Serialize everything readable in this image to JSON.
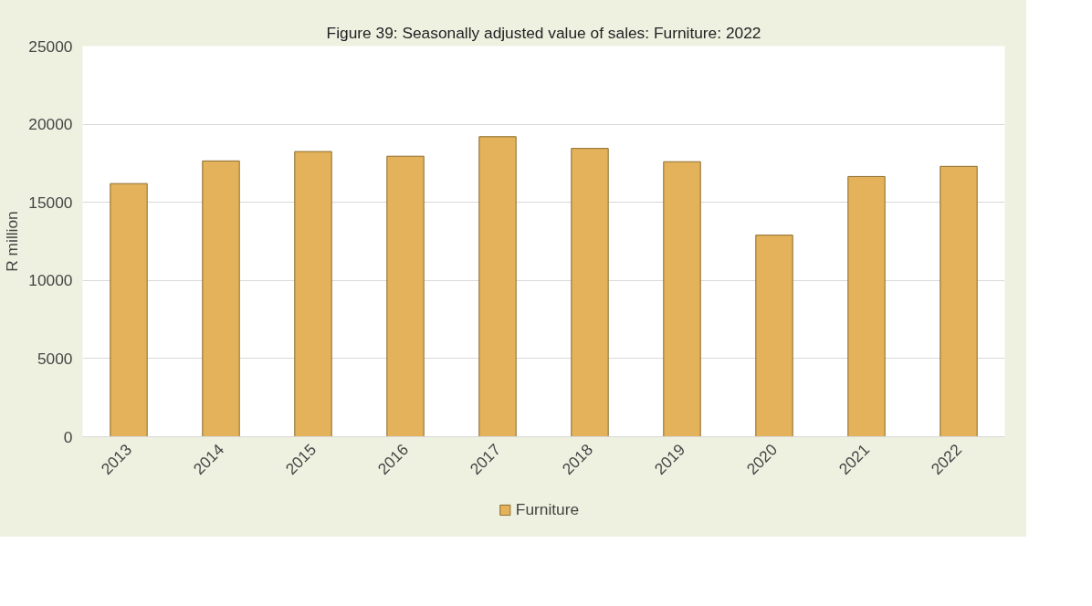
{
  "chart_data": {
    "type": "bar",
    "title": "Figure 39: Seasonally adjusted value of sales: Furniture: 2022",
    "ylabel": "R million",
    "categories": [
      "2013",
      "2014",
      "2015",
      "2016",
      "2017",
      "2018",
      "2019",
      "2020",
      "2021",
      "2022"
    ],
    "series": [
      {
        "name": "Furniture",
        "color": "#e3b25a",
        "values": [
          16200,
          17650,
          18250,
          17950,
          19200,
          18450,
          17600,
          12900,
          16650,
          17300
        ]
      }
    ],
    "ylim": [
      0,
      25000
    ],
    "yticks": [
      0,
      5000,
      10000,
      15000,
      20000,
      25000
    ],
    "grid": "y",
    "legend": "bottom"
  }
}
